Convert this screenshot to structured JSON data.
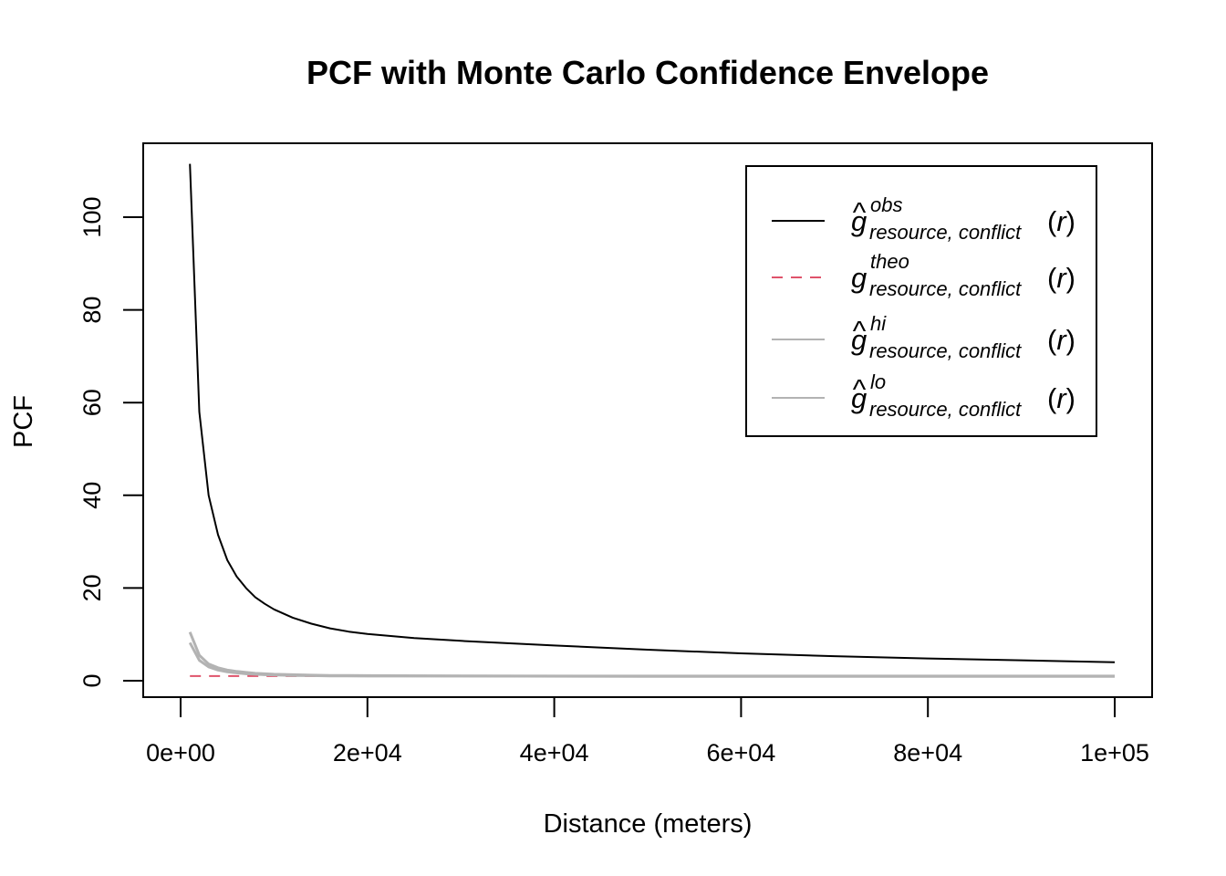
{
  "chart_data": {
    "type": "line",
    "title": "PCF with Monte Carlo Confidence Envelope",
    "xlabel": "Distance (meters)",
    "ylabel": "PCF",
    "xlim": [
      0,
      100000
    ],
    "ylim": [
      0,
      112
    ],
    "x_ticks": [
      0,
      20000,
      40000,
      60000,
      80000,
      100000
    ],
    "x_tick_labels": [
      "0e+00",
      "2e+04",
      "4e+04",
      "6e+04",
      "8e+04",
      "1e+05"
    ],
    "y_ticks": [
      0,
      20,
      40,
      60,
      80,
      100
    ],
    "y_tick_labels": [
      "0",
      "20",
      "40",
      "60",
      "80",
      "100"
    ],
    "grid": false,
    "legend_position": "top-right",
    "series": [
      {
        "key": "obs",
        "color": "#000000",
        "dash": "solid",
        "x": [
          1000,
          2000,
          3000,
          4000,
          5000,
          6000,
          7000,
          8000,
          9000,
          10000,
          12000,
          14000,
          16000,
          18000,
          20000,
          25000,
          30000,
          35000,
          40000,
          50000,
          60000,
          70000,
          80000,
          90000,
          100000
        ],
        "y": [
          111.5,
          58,
          40,
          31.5,
          26,
          22.5,
          20,
          18,
          16.6,
          15.4,
          13.6,
          12.3,
          11.3,
          10.6,
          10.1,
          9.2,
          8.6,
          8.1,
          7.6,
          6.7,
          5.9,
          5.3,
          4.8,
          4.4,
          4.0
        ]
      },
      {
        "key": "theo",
        "color": "#df536b",
        "dash": "dashed",
        "x": [
          1000,
          100000
        ],
        "y": [
          1,
          1
        ]
      },
      {
        "key": "hi",
        "color": "#b3b3b3",
        "dash": "solid",
        "x": [
          1000,
          2000,
          3000,
          4000,
          5000,
          6000,
          7000,
          8000,
          9000,
          10000,
          12000,
          14000,
          16000,
          20000,
          30000,
          50000,
          100000
        ],
        "y": [
          10.5,
          5.5,
          3.6,
          2.8,
          2.3,
          2.0,
          1.8,
          1.6,
          1.5,
          1.4,
          1.3,
          1.2,
          1.15,
          1.1,
          1.05,
          1.0,
          1.0
        ]
      },
      {
        "key": "lo",
        "color": "#b3b3b3",
        "dash": "solid",
        "x": [
          1000,
          2000,
          3000,
          4000,
          5000,
          6000,
          7000,
          8000,
          9000,
          10000,
          12000,
          14000,
          16000,
          20000,
          30000,
          50000,
          100000
        ],
        "y": [
          8.2,
          4.4,
          3.0,
          2.3,
          1.9,
          1.7,
          1.5,
          1.4,
          1.3,
          1.25,
          1.15,
          1.1,
          1.05,
          1.0,
          1.0,
          0.95,
          0.95
        ]
      }
    ],
    "legend": [
      {
        "series": "obs",
        "base": "g",
        "hat": true,
        "sup": "obs",
        "sub": "resource, conflict",
        "arg": "r"
      },
      {
        "series": "theo",
        "base": "g",
        "hat": false,
        "sup": "theo",
        "sub": "resource, conflict",
        "arg": "r"
      },
      {
        "series": "hi",
        "base": "g",
        "hat": true,
        "sup": "hi",
        "sub": "resource, conflict",
        "arg": "r"
      },
      {
        "series": "lo",
        "base": "g",
        "hat": true,
        "sup": "lo",
        "sub": "resource, conflict",
        "arg": "r"
      }
    ]
  }
}
